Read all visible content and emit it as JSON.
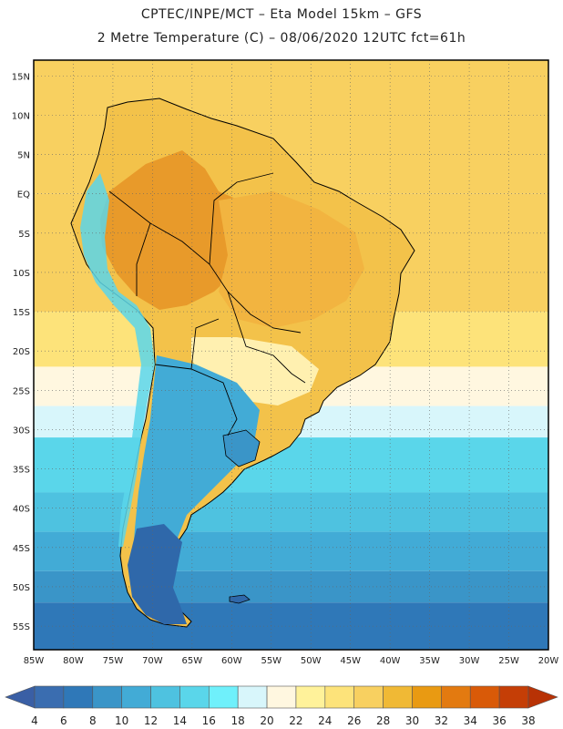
{
  "header": {
    "line1": "CPTEC/INPE/MCT –  Eta Model 15km – GFS",
    "line2": "2 Metre Temperature (C) – 08/06/2020 12UTC fct=61h"
  },
  "map": {
    "lon_range": [
      -85,
      -20
    ],
    "lat_range": [
      -58,
      17
    ],
    "lat_ticks": [
      {
        "v": 15,
        "label": "15N"
      },
      {
        "v": 10,
        "label": "10N"
      },
      {
        "v": 5,
        "label": "5N"
      },
      {
        "v": 0,
        "label": "EQ"
      },
      {
        "v": -5,
        "label": "5S"
      },
      {
        "v": -10,
        "label": "10S"
      },
      {
        "v": -15,
        "label": "15S"
      },
      {
        "v": -20,
        "label": "20S"
      },
      {
        "v": -25,
        "label": "25S"
      },
      {
        "v": -30,
        "label": "30S"
      },
      {
        "v": -35,
        "label": "35S"
      },
      {
        "v": -40,
        "label": "40S"
      },
      {
        "v": -45,
        "label": "45S"
      },
      {
        "v": -50,
        "label": "50S"
      },
      {
        "v": -55,
        "label": "55S"
      }
    ],
    "lon_ticks": [
      {
        "v": -85,
        "label": "85W"
      },
      {
        "v": -80,
        "label": "80W"
      },
      {
        "v": -75,
        "label": "75W"
      },
      {
        "v": -70,
        "label": "70W"
      },
      {
        "v": -65,
        "label": "65W"
      },
      {
        "v": -60,
        "label": "60W"
      },
      {
        "v": -55,
        "label": "55W"
      },
      {
        "v": -50,
        "label": "50W"
      },
      {
        "v": -45,
        "label": "45W"
      },
      {
        "v": -40,
        "label": "40W"
      },
      {
        "v": -35,
        "label": "35W"
      },
      {
        "v": -30,
        "label": "30W"
      },
      {
        "v": -25,
        "label": "25W"
      },
      {
        "v": -20,
        "label": "20W"
      }
    ],
    "temperature_bands": [
      {
        "lat_from": 17,
        "lat_to": 0,
        "temp": 27
      },
      {
        "lat_from": 0,
        "lat_to": -15,
        "temp": 26
      },
      {
        "lat_from": -15,
        "lat_to": -22,
        "temp": 24
      },
      {
        "lat_from": -22,
        "lat_to": -27,
        "temp": 21
      },
      {
        "lat_from": -27,
        "lat_to": -31,
        "temp": 18
      },
      {
        "lat_from": -31,
        "lat_to": -38,
        "temp": 15
      },
      {
        "lat_from": -38,
        "lat_to": -43,
        "temp": 13
      },
      {
        "lat_from": -43,
        "lat_to": -48,
        "temp": 11
      },
      {
        "lat_from": -48,
        "lat_to": -52,
        "temp": 9
      },
      {
        "lat_from": -52,
        "lat_to": -58,
        "temp": 7
      }
    ],
    "land_regions": [
      {
        "name": "amazon-hot-zone",
        "temp": 32
      },
      {
        "name": "central-brazil",
        "temp": 30
      },
      {
        "name": "argentina-cool",
        "temp": 10
      },
      {
        "name": "patagonia",
        "temp": 7
      }
    ]
  },
  "colorbar": {
    "levels": [
      4,
      6,
      8,
      10,
      12,
      14,
      16,
      18,
      20,
      22,
      24,
      26,
      28,
      30,
      32,
      34,
      36,
      38
    ],
    "colors": [
      "#3a6db0",
      "#2f78b8",
      "#3a95c8",
      "#42abd6",
      "#4ec2e0",
      "#5ad6ea",
      "#6ff0fb",
      "#d8f6fb",
      "#fff7e0",
      "#fff29a",
      "#fde37a",
      "#f8d060",
      "#f0b935",
      "#e99a12",
      "#e37a10",
      "#d95a08",
      "#c53e06"
    ],
    "under_color": "#3a5fa5",
    "over_color": "#b83205"
  }
}
